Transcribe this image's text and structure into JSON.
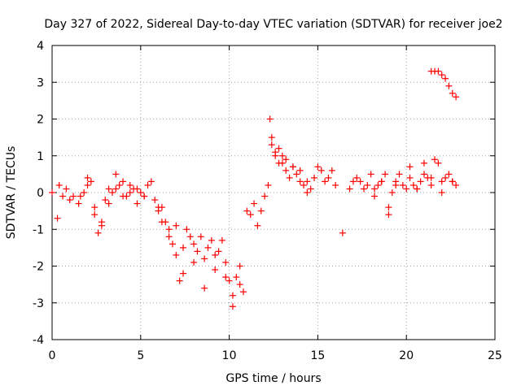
{
  "chart_data": {
    "type": "scatter",
    "title": "Day 327 of 2022, Sidereal Day-to-day VTEC variation (SDTVAR) for receiver joe2",
    "xlabel": "GPS time / hours",
    "ylabel": "SDTVAR / TECUs",
    "xlim": [
      0,
      25
    ],
    "ylim": [
      -4,
      4
    ],
    "xticks": [
      0,
      5,
      10,
      15,
      20,
      25
    ],
    "yticks": [
      -4,
      -3,
      -2,
      -1,
      0,
      1,
      2,
      3,
      4
    ],
    "grid": true,
    "marker": "+",
    "series": [
      {
        "name": "SDTVAR",
        "color": "#ff0000",
        "x": [
          0.0,
          0.3,
          0.4,
          0.6,
          0.8,
          1.0,
          1.2,
          1.5,
          1.8,
          2.0,
          2.2,
          2.4,
          2.6,
          2.8,
          3.0,
          3.2,
          3.4,
          3.6,
          3.8,
          4.0,
          4.2,
          4.4,
          4.6,
          4.8,
          5.0,
          5.2,
          5.4,
          5.6,
          5.8,
          6.0,
          6.2,
          6.4,
          6.6,
          6.8,
          7.0,
          7.2,
          7.4,
          7.6,
          7.8,
          8.0,
          8.2,
          8.4,
          8.6,
          8.8,
          9.0,
          9.2,
          9.4,
          9.6,
          9.8,
          10.0,
          10.2,
          10.4,
          10.6,
          10.8,
          11.0,
          11.2,
          11.4,
          11.6,
          11.8,
          12.0,
          12.2,
          12.3,
          12.4,
          12.6,
          12.8,
          13.0,
          13.2,
          13.4,
          13.6,
          13.8,
          14.0,
          14.2,
          14.4,
          14.6,
          14.8,
          15.0,
          15.2,
          15.4,
          15.6,
          15.8,
          16.0,
          16.4,
          16.8,
          17.0,
          17.2,
          17.4,
          17.6,
          17.8,
          18.0,
          18.2,
          18.4,
          18.6,
          18.8,
          19.0,
          19.2,
          19.4,
          19.6,
          19.8,
          20.0,
          20.2,
          20.4,
          20.6,
          20.8,
          21.0,
          21.2,
          21.4,
          21.6,
          21.8,
          22.0,
          22.2,
          22.4,
          22.6,
          22.8,
          21.4,
          21.6,
          21.8,
          22.0,
          22.2,
          22.4,
          22.6,
          22.8,
          1.6,
          2.0,
          2.4,
          2.8,
          3.2,
          3.6,
          4.0,
          4.4,
          4.8,
          5.2,
          6.0,
          6.2,
          6.6,
          7.0,
          7.4,
          8.0,
          8.6,
          9.2,
          9.8,
          10.2,
          10.6,
          12.4,
          12.6,
          12.8,
          13.0,
          13.2,
          13.6,
          14.0,
          14.4,
          18.2,
          18.6,
          19.0,
          19.4,
          20.2,
          20.6,
          21.0,
          21.4,
          22.0,
          22.6
        ],
        "y": [
          0.0,
          -0.7,
          0.2,
          -0.1,
          0.1,
          -0.2,
          -0.1,
          -0.3,
          0.0,
          0.4,
          0.3,
          -0.4,
          -1.1,
          -0.8,
          -0.2,
          0.1,
          0.0,
          0.5,
          0.2,
          0.3,
          -0.1,
          0.0,
          0.1,
          0.1,
          0.0,
          -0.1,
          0.2,
          0.3,
          -0.2,
          -0.5,
          -0.4,
          -0.8,
          -1.0,
          -1.4,
          -0.9,
          -2.4,
          -1.5,
          -1.0,
          -1.2,
          -1.9,
          -1.6,
          -1.2,
          -1.8,
          -1.5,
          -1.3,
          -2.1,
          -1.6,
          -1.3,
          -1.9,
          -2.4,
          -2.8,
          -2.3,
          -2.0,
          -2.7,
          -0.5,
          -0.6,
          -0.3,
          -0.9,
          -0.5,
          -0.1,
          0.2,
          2.0,
          1.5,
          1.0,
          1.2,
          0.8,
          0.6,
          0.4,
          0.7,
          0.5,
          0.3,
          0.2,
          0.0,
          0.1,
          0.4,
          0.7,
          0.6,
          0.3,
          0.4,
          0.6,
          0.2,
          -1.1,
          0.1,
          0.3,
          0.4,
          0.3,
          0.1,
          0.2,
          0.5,
          -0.1,
          0.2,
          0.3,
          0.5,
          -0.4,
          0.0,
          0.3,
          0.5,
          0.2,
          0.1,
          0.4,
          0.2,
          0.1,
          0.3,
          0.5,
          0.4,
          0.2,
          0.9,
          0.8,
          0.3,
          0.4,
          0.5,
          0.3,
          0.2,
          3.3,
          3.3,
          3.3,
          3.2,
          3.1,
          2.9,
          2.7,
          2.6,
          -0.1,
          0.2,
          -0.6,
          -0.9,
          -0.3,
          0.1,
          -0.1,
          0.2,
          -0.3,
          -0.1,
          -0.4,
          -0.8,
          -1.2,
          -1.7,
          -2.2,
          -1.4,
          -2.6,
          -1.7,
          -2.3,
          -3.1,
          -2.5,
          1.3,
          1.1,
          0.8,
          1.0,
          0.9,
          0.7,
          0.6,
          0.3,
          0.1,
          0.3,
          -0.6,
          0.2,
          0.7,
          0.1,
          0.8,
          0.4,
          0.0,
          0.3
        ]
      }
    ]
  }
}
